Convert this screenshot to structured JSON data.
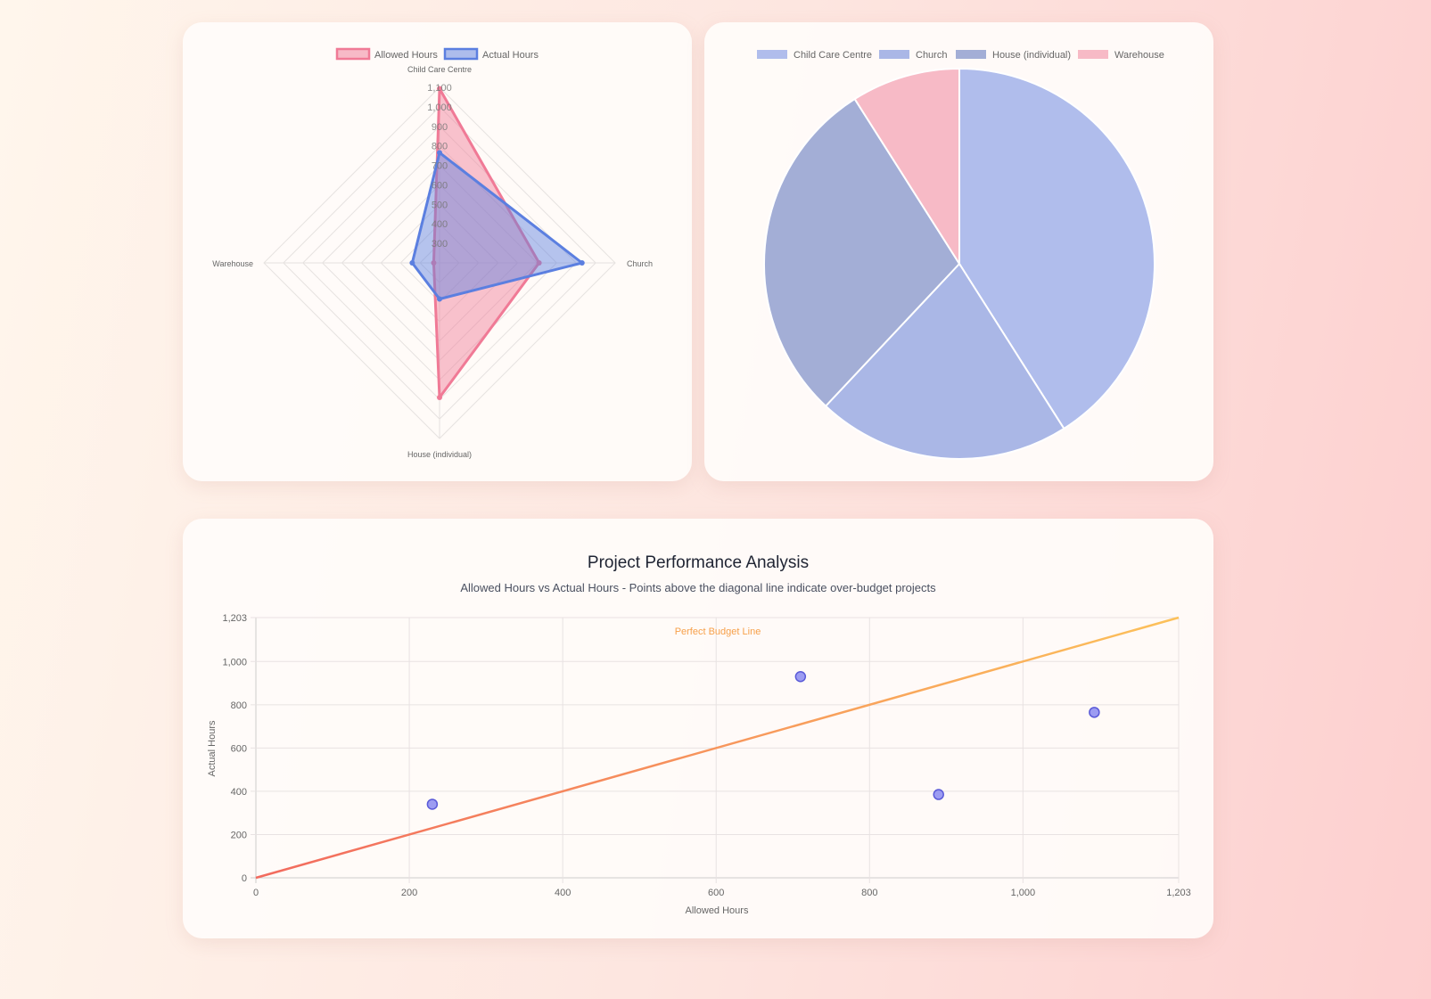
{
  "chart_data": [
    {
      "type": "radar",
      "labels": [
        "Child Care Centre",
        "Church",
        "House (individual)",
        "Warehouse"
      ],
      "series": [
        {
          "name": "Allowed Hours",
          "values": [
            1093,
            710,
            890,
            230
          ],
          "color": "#f07a96"
        },
        {
          "name": "Actual Hours",
          "values": [
            765,
            930,
            385,
            340
          ],
          "color": "#5b7fe0"
        }
      ],
      "rlim": [
        200,
        1100
      ],
      "ticks": [
        "300",
        "400",
        "500",
        "600",
        "700",
        "800",
        "900",
        "1,000",
        "1,100"
      ],
      "legend": "top"
    },
    {
      "type": "pie",
      "labels": [
        "Child Care Centre",
        "Church",
        "House (individual)",
        "Warehouse"
      ],
      "values": [
        41,
        21,
        29,
        9
      ],
      "colors": [
        "#b0bdec",
        "#aab7e6",
        "#a3aed6",
        "#f7bac6"
      ],
      "legend": "top"
    },
    {
      "type": "scatter",
      "title": "Project Performance Analysis",
      "subtitle": "Allowed Hours vs Actual Hours - Points above the diagonal line indicate over-budget projects",
      "xlabel": "Allowed Hours",
      "ylabel": "Actual Hours",
      "xlim": [
        0,
        1203
      ],
      "ylim": [
        0,
        1203
      ],
      "xticks": [
        "0",
        "200",
        "400",
        "600",
        "800",
        "1,000",
        "1,203"
      ],
      "yticks": [
        "0",
        "200",
        "400",
        "600",
        "800",
        "1,000",
        "1,203"
      ],
      "points": [
        [
          230,
          340
        ],
        [
          710,
          930
        ],
        [
          890,
          385
        ],
        [
          1093,
          765
        ]
      ],
      "line": {
        "name": "Perfect Budget Line",
        "from": [
          0,
          0
        ],
        "to": [
          1203,
          1203
        ]
      },
      "grid": true,
      "point_color": "#7b7cf0"
    }
  ]
}
